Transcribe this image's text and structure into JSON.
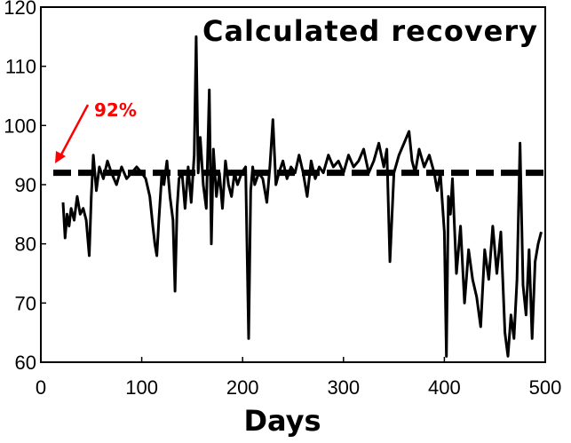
{
  "chart_data": {
    "type": "line",
    "title": "Calculated recovery",
    "xlabel": "Days",
    "ylabel": "",
    "xlim": [
      0,
      500
    ],
    "ylim": [
      60,
      120
    ],
    "xticks": [
      "0",
      "100",
      "200",
      "300",
      "400",
      "500"
    ],
    "yticks": [
      "60",
      "70",
      "80",
      "90",
      "100",
      "110",
      "120"
    ],
    "grid": false,
    "annotation": {
      "text": "92%",
      "y": 92,
      "color": "#ff0000"
    },
    "reference_line": {
      "y": 92,
      "style": "dashed"
    },
    "series": [
      {
        "x": [
          22,
          24,
          26,
          28,
          30,
          33,
          36,
          39,
          42,
          45,
          48,
          50,
          52,
          55,
          58,
          62,
          66,
          70,
          75,
          80,
          85,
          90,
          95,
          100,
          104,
          108,
          111,
          113,
          115,
          117,
          120,
          122,
          125,
          128,
          131,
          133,
          135,
          137,
          140,
          143,
          146,
          149,
          152,
          154,
          156,
          158,
          161,
          164,
          167,
          169,
          171,
          174,
          177,
          180,
          183,
          186,
          189,
          192,
          195,
          199,
          203,
          206,
          208,
          210,
          212,
          216,
          220,
          224,
          227,
          230,
          233,
          236,
          240,
          244,
          248,
          252,
          256,
          260,
          264,
          268,
          272,
          276,
          280,
          285,
          290,
          295,
          300,
          305,
          310,
          315,
          320,
          325,
          330,
          335,
          340,
          343,
          346,
          350,
          355,
          360,
          365,
          368,
          371,
          375,
          380,
          385,
          390,
          393,
          396,
          398,
          400,
          402,
          404,
          406,
          408,
          412,
          416,
          420,
          424,
          428,
          432,
          436,
          440,
          444,
          448,
          452,
          456,
          460,
          463,
          466,
          469,
          472,
          475,
          478,
          481,
          484,
          487,
          490,
          493,
          496
        ],
        "values": [
          87,
          81,
          85,
          83,
          86,
          84,
          88,
          85,
          86,
          84,
          78,
          88,
          95,
          89,
          93,
          91,
          94,
          92,
          90,
          93,
          91,
          92,
          93,
          92,
          91,
          88,
          83,
          80,
          78,
          84,
          92,
          90,
          94,
          88,
          84,
          72,
          86,
          91,
          92,
          86,
          93,
          87,
          95,
          115,
          92,
          98,
          90,
          86,
          106,
          80,
          96,
          88,
          92,
          86,
          94,
          90,
          88,
          92,
          90,
          92,
          93,
          64,
          89,
          93,
          90,
          92,
          91,
          87,
          93,
          101,
          90,
          92,
          94,
          91,
          93,
          92,
          95,
          92,
          88,
          94,
          91,
          93,
          92,
          95,
          93,
          94,
          92,
          95,
          93,
          94,
          96,
          92,
          94,
          97,
          93,
          96,
          77,
          92,
          95,
          97,
          99,
          94,
          92,
          96,
          93,
          95,
          92,
          89,
          92,
          87,
          82,
          61,
          88,
          85,
          91,
          75,
          83,
          70,
          79,
          74,
          71,
          66,
          79,
          74,
          83,
          75,
          82,
          65,
          61,
          68,
          64,
          74,
          97,
          73,
          68,
          79,
          64,
          77,
          80,
          82
        ]
      }
    ]
  }
}
